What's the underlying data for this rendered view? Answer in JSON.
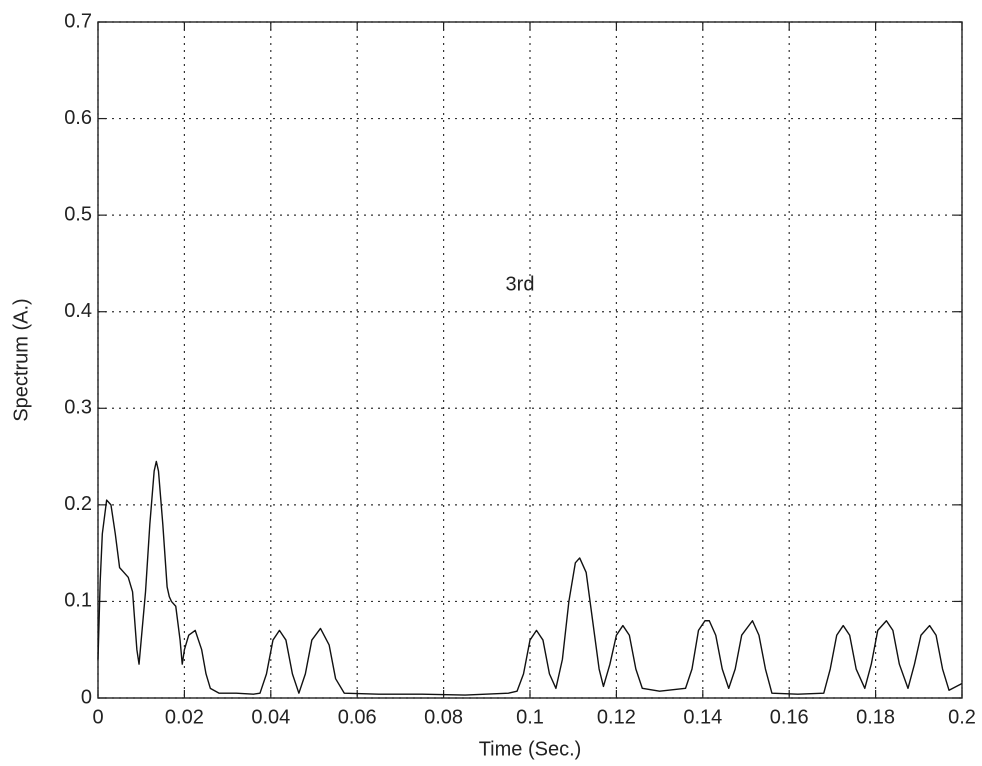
{
  "chart_data": {
    "type": "line",
    "x_label": "Time (Sec.)",
    "y_label": "Spectrum (A.)",
    "annotation": "3rd",
    "color": "#111111",
    "grid": true,
    "x": [
      0,
      0.0005,
      0.001,
      0.002,
      0.003,
      0.004,
      0.005,
      0.006,
      0.007,
      0.008,
      0.009,
      0.0095,
      0.01,
      0.011,
      0.012,
      0.013,
      0.0135,
      0.014,
      0.015,
      0.016,
      0.0165,
      0.017,
      0.018,
      0.019,
      0.0195,
      0.02,
      0.021,
      0.0225,
      0.024,
      0.025,
      0.026,
      0.028,
      0.032,
      0.036,
      0.0375,
      0.039,
      0.0405,
      0.042,
      0.0435,
      0.045,
      0.0465,
      0.048,
      0.0495,
      0.0515,
      0.0535,
      0.055,
      0.057,
      0.065,
      0.075,
      0.085,
      0.095,
      0.097,
      0.0985,
      0.1,
      0.1015,
      0.103,
      0.1045,
      0.106,
      0.1075,
      0.109,
      0.1105,
      0.1115,
      0.113,
      0.1145,
      0.116,
      0.117,
      0.1185,
      0.12,
      0.1215,
      0.123,
      0.1245,
      0.126,
      0.13,
      0.136,
      0.1375,
      0.139,
      0.1405,
      0.1415,
      0.143,
      0.1445,
      0.146,
      0.1475,
      0.149,
      0.1515,
      0.153,
      0.1545,
      0.156,
      0.162,
      0.168,
      0.1695,
      0.171,
      0.1725,
      0.174,
      0.1755,
      0.1775,
      0.179,
      0.1805,
      0.1825,
      0.184,
      0.1855,
      0.1875,
      0.189,
      0.1905,
      0.1925,
      0.194,
      0.1955,
      0.197,
      0.2
    ],
    "values": [
      0.04,
      0.12,
      0.17,
      0.205,
      0.2,
      0.17,
      0.135,
      0.13,
      0.125,
      0.11,
      0.05,
      0.035,
      0.06,
      0.11,
      0.18,
      0.235,
      0.245,
      0.235,
      0.18,
      0.115,
      0.105,
      0.1,
      0.095,
      0.06,
      0.035,
      0.05,
      0.065,
      0.07,
      0.05,
      0.025,
      0.01,
      0.005,
      0.005,
      0.004,
      0.005,
      0.025,
      0.06,
      0.07,
      0.06,
      0.025,
      0.005,
      0.025,
      0.06,
      0.072,
      0.055,
      0.02,
      0.005,
      0.004,
      0.004,
      0.003,
      0.005,
      0.007,
      0.025,
      0.06,
      0.07,
      0.06,
      0.025,
      0.01,
      0.04,
      0.1,
      0.14,
      0.145,
      0.13,
      0.08,
      0.03,
      0.012,
      0.035,
      0.065,
      0.075,
      0.065,
      0.03,
      0.01,
      0.007,
      0.01,
      0.03,
      0.07,
      0.08,
      0.08,
      0.065,
      0.03,
      0.01,
      0.03,
      0.065,
      0.08,
      0.065,
      0.03,
      0.005,
      0.004,
      0.005,
      0.03,
      0.065,
      0.075,
      0.065,
      0.03,
      0.01,
      0.035,
      0.07,
      0.08,
      0.07,
      0.035,
      0.01,
      0.035,
      0.065,
      0.075,
      0.065,
      0.03,
      0.008,
      0.015
    ],
    "xlim": [
      0,
      0.2
    ],
    "ylim": [
      0,
      0.7
    ],
    "xticks": [
      0,
      0.02,
      0.04,
      0.06,
      0.08,
      0.1,
      0.12,
      0.14,
      0.16,
      0.18,
      0.2
    ],
    "yticks": [
      0,
      0.1,
      0.2,
      0.3,
      0.4,
      0.5,
      0.6,
      0.7
    ]
  }
}
